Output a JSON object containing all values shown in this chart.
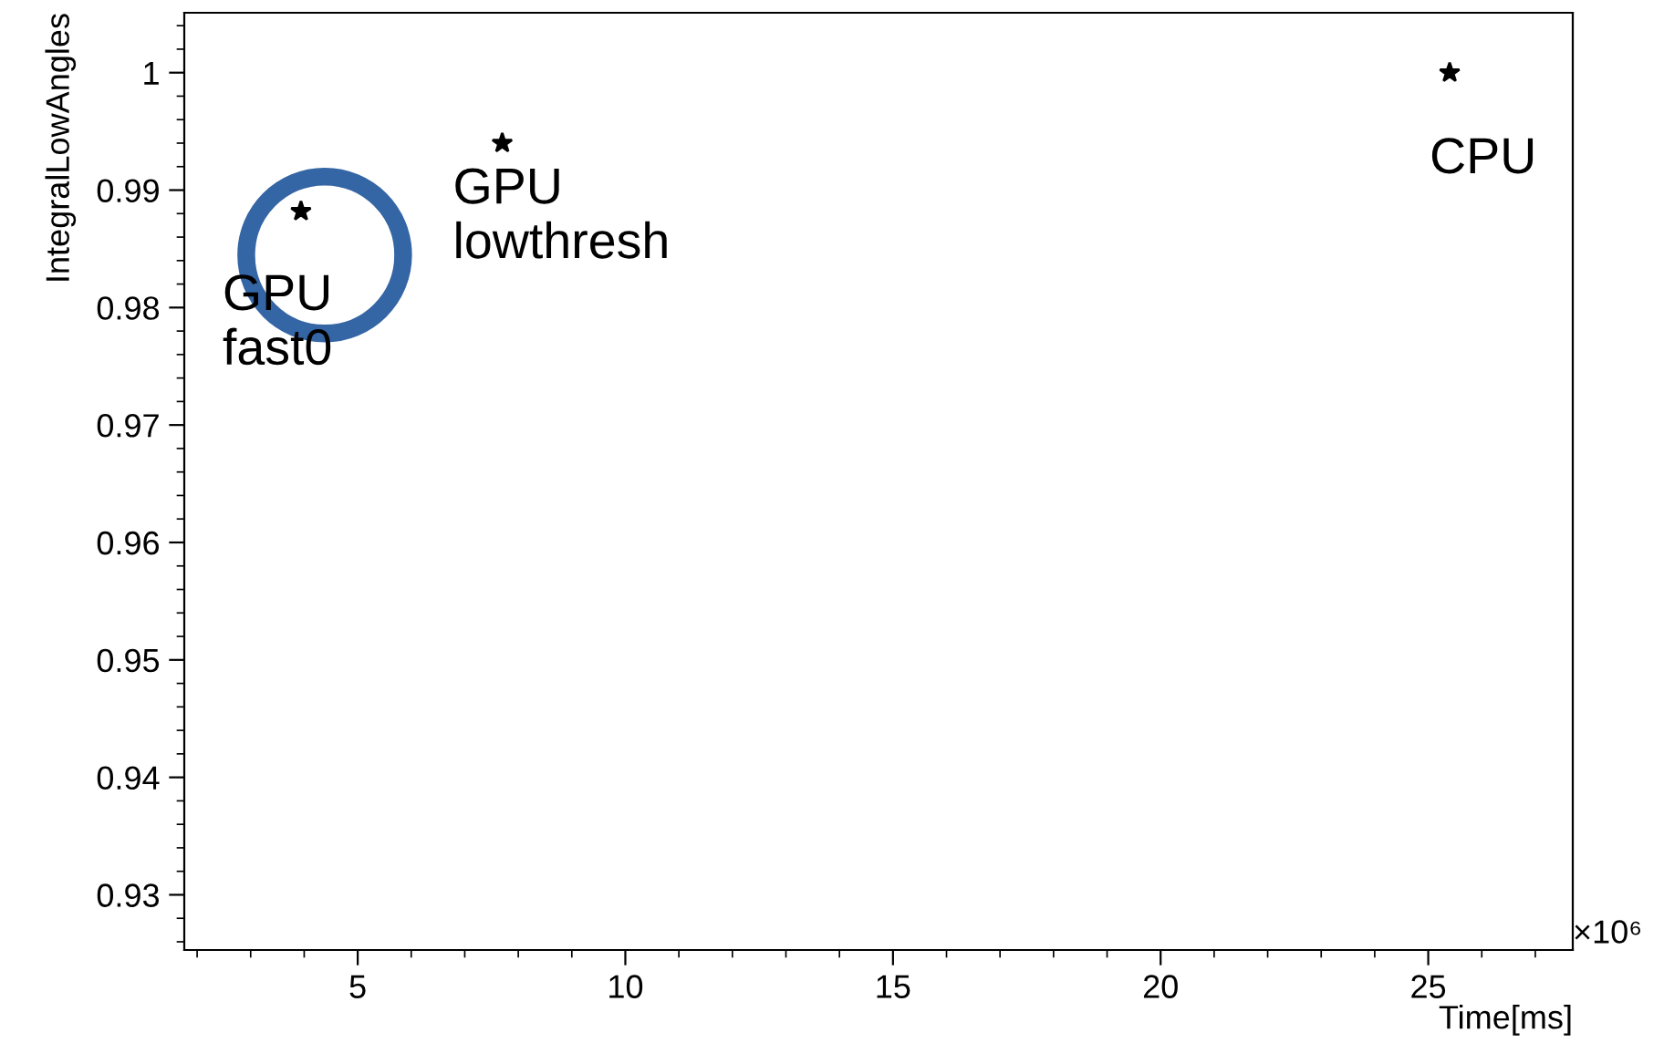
{
  "chart_data": {
    "type": "scatter",
    "xlabel": "Time[ms]",
    "ylabel": "IntegralLowAngles",
    "series": [
      {
        "color": "#000000",
        "x": [
          3.94,
          7.7,
          25.4
        ],
        "values": [
          0.9882,
          0.994,
          1.0
        ]
      }
    ],
    "marker": "star",
    "xlim": [
      1.76,
      27.7
    ],
    "xticks": [
      5,
      10,
      15,
      20,
      25
    ],
    "ylim": [
      0.9253,
      1.0051
    ],
    "yticks": [
      0.93,
      0.94,
      0.95,
      0.96,
      0.97,
      0.98,
      0.99,
      1
    ],
    "grid": false,
    "legend": false,
    "annotations": [
      {
        "text": "GPU\nfast0",
        "x": 3.94,
        "y": 0.9882
      },
      {
        "text": "GPU\nlowthresh",
        "x": 7.7,
        "y": 0.994
      },
      {
        "text": "CPU",
        "x": 25.4,
        "y": 1.0
      },
      "×10⁶"
    ]
  }
}
